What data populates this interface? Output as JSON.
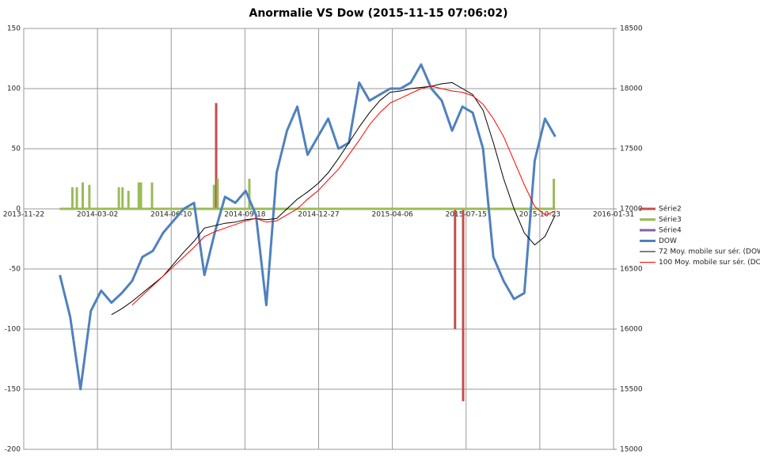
{
  "chart_data": {
    "type": "line",
    "title": "Anormalie VS Dow (2015-11-15 07:06:02)",
    "xlim": [
      "2013-11-22",
      "2016-01-31"
    ],
    "xticks": [
      "2013-11-22",
      "2014-03-02",
      "2014-06-10",
      "2014-09-18",
      "2014-12-27",
      "2015-04-06",
      "2015-07-15",
      "2015-10-23",
      "2016-01-31"
    ],
    "ylim": [
      -200,
      150
    ],
    "yticks": [
      -200,
      -150,
      -100,
      -50,
      0,
      50,
      100,
      150
    ],
    "y2lim": [
      15000,
      18500
    ],
    "y2ticks": [
      15000,
      15500,
      16000,
      16500,
      17000,
      17500,
      18000,
      18500
    ],
    "grid": true,
    "legend": "right",
    "x": [
      "2014-01-10",
      "2014-01-24",
      "2014-02-07",
      "2014-02-21",
      "2014-03-07",
      "2014-03-21",
      "2014-04-04",
      "2014-04-18",
      "2014-05-02",
      "2014-05-16",
      "2014-05-30",
      "2014-06-13",
      "2014-06-27",
      "2014-07-11",
      "2014-07-25",
      "2014-08-08",
      "2014-08-22",
      "2014-09-05",
      "2014-09-19",
      "2014-10-03",
      "2014-10-17",
      "2014-10-31",
      "2014-11-14",
      "2014-11-28",
      "2014-12-12",
      "2014-12-26",
      "2015-01-09",
      "2015-01-23",
      "2015-02-06",
      "2015-02-20",
      "2015-03-06",
      "2015-03-20",
      "2015-04-03",
      "2015-04-17",
      "2015-05-01",
      "2015-05-15",
      "2015-05-29",
      "2015-06-12",
      "2015-06-26",
      "2015-07-10",
      "2015-07-24",
      "2015-08-07",
      "2015-08-21",
      "2015-09-04",
      "2015-09-18",
      "2015-10-02",
      "2015-10-16",
      "2015-10-30",
      "2015-11-13"
    ],
    "series": [
      {
        "name": "Série2",
        "color": "#c0504d",
        "kind": "spike",
        "x": [
          "2014-01-10",
          "2014-08-10",
          "2015-06-30",
          "2015-07-11",
          "2015-11-13"
        ],
        "values": [
          0,
          88,
          -100,
          -160,
          0
        ]
      },
      {
        "name": "Série3",
        "color": "#9bbb59",
        "kind": "spike",
        "x": [
          "2014-01-10",
          "2014-01-27",
          "2014-02-02",
          "2014-02-10",
          "2014-02-19",
          "2014-03-31",
          "2014-04-05",
          "2014-04-13",
          "2014-04-27",
          "2014-04-30",
          "2014-05-15",
          "2014-08-07",
          "2014-08-12",
          "2014-09-24",
          "2015-11-11",
          "2015-11-13"
        ],
        "values": [
          0,
          18,
          18,
          22,
          20,
          18,
          18,
          15,
          22,
          22,
          22,
          20,
          25,
          25,
          25,
          0
        ]
      },
      {
        "name": "Série4",
        "color": "#8064a2",
        "kind": "spike",
        "x": [],
        "values": []
      },
      {
        "name": "DOW",
        "color": "#4f81bd",
        "axis": "y2",
        "width": 3,
        "values": [
          16450,
          16100,
          15500,
          16150,
          16320,
          16220,
          16300,
          16400,
          16600,
          16650,
          16800,
          16900,
          17000,
          17050,
          16450,
          16800,
          17100,
          17050,
          17150,
          16950,
          16200,
          17300,
          17650,
          17850,
          17450,
          17600,
          17750,
          17500,
          17550,
          18050,
          17900,
          17950,
          18000,
          18000,
          18050,
          18200,
          18000,
          17900,
          17650,
          17850,
          17800,
          17500,
          16600,
          16400,
          16250,
          16300,
          17400,
          17750,
          17600
        ]
      },
      {
        "name": "72 Moy. mobile sur sér. (DOW)",
        "color": "#000000",
        "axis": "y2",
        "width": 1,
        "values": [
          null,
          null,
          null,
          null,
          null,
          16120,
          16170,
          16230,
          16300,
          16370,
          16440,
          16540,
          16640,
          16730,
          16840,
          16860,
          16880,
          16890,
          16910,
          16920,
          16910,
          16920,
          17000,
          17080,
          17140,
          17210,
          17300,
          17420,
          17550,
          17680,
          17800,
          17900,
          17970,
          17980,
          18000,
          18010,
          18020,
          18040,
          18050,
          18000,
          17950,
          17820,
          17550,
          17250,
          17000,
          16800,
          16700,
          16770,
          16950
        ]
      },
      {
        "name": "100 Moy. mobile sur sér. (DOW)",
        "color": "#ff0000",
        "axis": "y2",
        "width": 1,
        "values": [
          null,
          null,
          null,
          null,
          null,
          null,
          null,
          16200,
          16280,
          16360,
          16440,
          16520,
          16600,
          16680,
          16770,
          16810,
          16840,
          16870,
          16900,
          16920,
          16890,
          16900,
          16950,
          17000,
          17080,
          17150,
          17240,
          17330,
          17450,
          17570,
          17700,
          17800,
          17880,
          17920,
          17960,
          18000,
          18020,
          18000,
          17980,
          17970,
          17940,
          17870,
          17750,
          17600,
          17400,
          17200,
          17020,
          16950,
          16980
        ]
      }
    ]
  }
}
